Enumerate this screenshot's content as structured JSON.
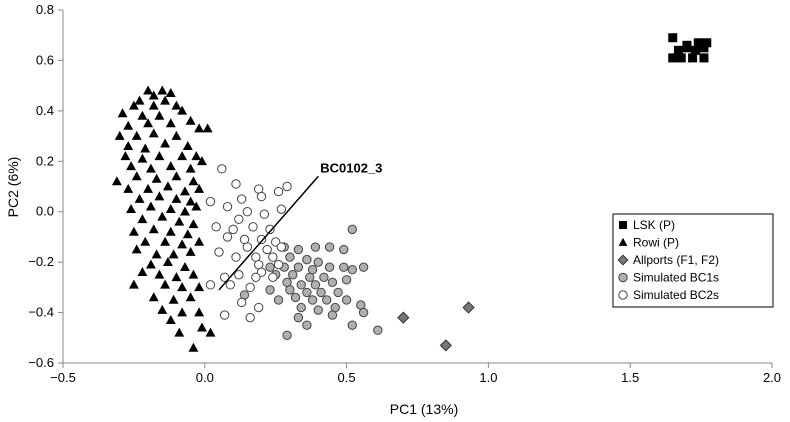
{
  "chart_data": {
    "type": "scatter",
    "xlabel": "PC1 (13%)",
    "ylabel": "PC2 (6%)",
    "xlim": [
      -0.5,
      2.0
    ],
    "ylim": [
      -0.6,
      0.8
    ],
    "x_ticks": [
      "−0.5",
      "0.0",
      "0.5",
      "1.0",
      "1.5",
      "2.0"
    ],
    "x_tick_values": [
      -0.5,
      0.0,
      0.5,
      1.0,
      1.5,
      2.0
    ],
    "y_ticks": [
      "0.8",
      "0.6",
      "0.4",
      "0.2",
      "0.0",
      "−0.2",
      "−0.4",
      "−0.6"
    ],
    "y_tick_values": [
      0.8,
      0.6,
      0.4,
      0.2,
      0.0,
      -0.2,
      -0.4,
      -0.6
    ],
    "grid": false,
    "legend_position": "right",
    "annotation": {
      "text": "BC0102_3",
      "line_from": [
        0.05,
        -0.31
      ],
      "line_to": [
        0.4,
        0.14
      ]
    },
    "series": [
      {
        "name": "LSK (P)",
        "marker": "square",
        "color": "#000000",
        "points": [
          [
            1.65,
            0.69
          ],
          [
            1.7,
            0.66
          ],
          [
            1.74,
            0.67
          ],
          [
            1.77,
            0.67
          ],
          [
            1.67,
            0.64
          ],
          [
            1.7,
            0.65
          ],
          [
            1.73,
            0.64
          ],
          [
            1.76,
            0.65
          ],
          [
            1.65,
            0.61
          ],
          [
            1.68,
            0.61
          ],
          [
            1.72,
            0.61
          ],
          [
            1.76,
            0.61
          ]
        ]
      },
      {
        "name": "Rowi (P)",
        "marker": "triangle",
        "color": "#000000",
        "points": [
          [
            -0.2,
            0.48
          ],
          [
            -0.15,
            0.48
          ],
          [
            -0.12,
            0.47
          ],
          [
            -0.18,
            0.46
          ],
          [
            -0.23,
            0.44
          ],
          [
            -0.14,
            0.44
          ],
          [
            -0.25,
            0.42
          ],
          [
            -0.18,
            0.42
          ],
          [
            -0.1,
            0.42
          ],
          [
            -0.08,
            0.4
          ],
          [
            -0.29,
            0.39
          ],
          [
            -0.22,
            0.38
          ],
          [
            -0.16,
            0.38
          ],
          [
            -0.02,
            0.33
          ],
          [
            0.01,
            0.33
          ],
          [
            -0.27,
            0.34
          ],
          [
            -0.2,
            0.35
          ],
          [
            -0.12,
            0.35
          ],
          [
            -0.05,
            0.36
          ],
          [
            -0.3,
            0.3
          ],
          [
            -0.24,
            0.3
          ],
          [
            -0.18,
            0.31
          ],
          [
            -0.1,
            0.3
          ],
          [
            -0.27,
            0.26
          ],
          [
            -0.21,
            0.25
          ],
          [
            -0.14,
            0.27
          ],
          [
            -0.06,
            0.26
          ],
          [
            -0.28,
            0.22
          ],
          [
            -0.22,
            0.21
          ],
          [
            -0.16,
            0.22
          ],
          [
            -0.08,
            0.22
          ],
          [
            -0.03,
            0.22
          ],
          [
            -0.26,
            0.18
          ],
          [
            -0.19,
            0.17
          ],
          [
            -0.12,
            0.18
          ],
          [
            -0.05,
            0.17
          ],
          [
            -0.01,
            0.2
          ],
          [
            -0.24,
            0.14
          ],
          [
            -0.17,
            0.13
          ],
          [
            -0.1,
            0.14
          ],
          [
            -0.04,
            0.12
          ],
          [
            -0.31,
            0.12
          ],
          [
            -0.27,
            0.09
          ],
          [
            -0.2,
            0.09
          ],
          [
            -0.13,
            0.1
          ],
          [
            -0.07,
            0.08
          ],
          [
            -0.02,
            0.09
          ],
          [
            -0.23,
            0.05
          ],
          [
            -0.16,
            0.06
          ],
          [
            -0.1,
            0.05
          ],
          [
            -0.05,
            0.04
          ],
          [
            -0.26,
            0.01
          ],
          [
            -0.19,
            0.02
          ],
          [
            -0.12,
            0.01
          ],
          [
            -0.07,
            0.0
          ],
          [
            -0.03,
            0.02
          ],
          [
            -0.22,
            -0.03
          ],
          [
            -0.15,
            -0.02
          ],
          [
            -0.09,
            -0.04
          ],
          [
            -0.04,
            -0.05
          ],
          [
            -0.25,
            -0.08
          ],
          [
            -0.18,
            -0.07
          ],
          [
            -0.12,
            -0.08
          ],
          [
            -0.06,
            -0.09
          ],
          [
            -0.21,
            -0.12
          ],
          [
            -0.14,
            -0.12
          ],
          [
            -0.08,
            -0.13
          ],
          [
            -0.02,
            -0.12
          ],
          [
            -0.24,
            -0.15
          ],
          [
            -0.17,
            -0.17
          ],
          [
            -0.11,
            -0.17
          ],
          [
            -0.05,
            -0.16
          ],
          [
            -0.19,
            -0.21
          ],
          [
            -0.13,
            -0.2
          ],
          [
            -0.07,
            -0.22
          ],
          [
            -0.22,
            -0.24
          ],
          [
            -0.16,
            -0.25
          ],
          [
            -0.1,
            -0.26
          ],
          [
            -0.04,
            -0.25
          ],
          [
            -0.25,
            -0.29
          ],
          [
            -0.14,
            -0.29
          ],
          [
            -0.08,
            -0.3
          ],
          [
            -0.02,
            -0.3
          ],
          [
            -0.18,
            -0.34
          ],
          [
            -0.11,
            -0.35
          ],
          [
            -0.05,
            -0.34
          ],
          [
            -0.15,
            -0.39
          ],
          [
            -0.08,
            -0.4
          ],
          [
            -0.02,
            -0.4
          ],
          [
            -0.12,
            -0.43
          ],
          [
            -0.01,
            -0.46
          ],
          [
            -0.09,
            -0.48
          ],
          [
            0.02,
            -0.48
          ],
          [
            -0.04,
            -0.54
          ]
        ]
      },
      {
        "name": "Allports (F1, F2)",
        "marker": "diamond",
        "color": "#777777",
        "points": [
          [
            0.7,
            -0.42
          ],
          [
            0.93,
            -0.38
          ],
          [
            0.85,
            -0.53
          ]
        ]
      },
      {
        "name": "Simulated BC1s",
        "marker": "circle",
        "color": "#b0b0b0",
        "points": [
          [
            0.52,
            -0.07
          ],
          [
            0.28,
            -0.14
          ],
          [
            0.33,
            -0.15
          ],
          [
            0.39,
            -0.14
          ],
          [
            0.44,
            -0.14
          ],
          [
            0.49,
            -0.15
          ],
          [
            0.3,
            -0.18
          ],
          [
            0.36,
            -0.19
          ],
          [
            0.4,
            -0.2
          ],
          [
            0.23,
            -0.22
          ],
          [
            0.28,
            -0.22
          ],
          [
            0.33,
            -0.22
          ],
          [
            0.38,
            -0.23
          ],
          [
            0.44,
            -0.22
          ],
          [
            0.49,
            -0.22
          ],
          [
            0.56,
            -0.22
          ],
          [
            0.25,
            -0.25
          ],
          [
            0.31,
            -0.25
          ],
          [
            0.37,
            -0.26
          ],
          [
            0.42,
            -0.26
          ],
          [
            0.52,
            -0.23
          ],
          [
            0.29,
            -0.28
          ],
          [
            0.34,
            -0.29
          ],
          [
            0.39,
            -0.29
          ],
          [
            0.45,
            -0.28
          ],
          [
            0.5,
            -0.27
          ],
          [
            0.23,
            -0.31
          ],
          [
            0.3,
            -0.31
          ],
          [
            0.36,
            -0.32
          ],
          [
            0.41,
            -0.32
          ],
          [
            0.47,
            -0.32
          ],
          [
            0.14,
            -0.33
          ],
          [
            0.26,
            -0.35
          ],
          [
            0.32,
            -0.34
          ],
          [
            0.38,
            -0.35
          ],
          [
            0.43,
            -0.35
          ],
          [
            0.5,
            -0.35
          ],
          [
            0.55,
            -0.37
          ],
          [
            0.34,
            -0.38
          ],
          [
            0.4,
            -0.39
          ],
          [
            0.46,
            -0.38
          ],
          [
            0.56,
            -0.4
          ],
          [
            0.33,
            -0.42
          ],
          [
            0.45,
            -0.41
          ],
          [
            0.36,
            -0.45
          ],
          [
            0.52,
            -0.45
          ],
          [
            0.61,
            -0.47
          ],
          [
            0.29,
            -0.49
          ]
        ]
      },
      {
        "name": "Simulated BC2s",
        "marker": "circle",
        "color": "#ffffff",
        "points": [
          [
            0.06,
            0.17
          ],
          [
            0.11,
            0.11
          ],
          [
            0.19,
            0.09
          ],
          [
            0.26,
            0.08
          ],
          [
            0.29,
            0.1
          ],
          [
            0.13,
            0.05
          ],
          [
            0.2,
            0.06
          ],
          [
            0.02,
            0.04
          ],
          [
            0.08,
            0.02
          ],
          [
            0.15,
            0.0
          ],
          [
            0.21,
            -0.01
          ],
          [
            0.27,
            0.01
          ],
          [
            0.12,
            -0.03
          ],
          [
            0.04,
            -0.06
          ],
          [
            0.1,
            -0.07
          ],
          [
            0.17,
            -0.06
          ],
          [
            0.23,
            -0.07
          ],
          [
            0.08,
            -0.1
          ],
          [
            0.14,
            -0.11
          ],
          [
            0.2,
            -0.11
          ],
          [
            0.25,
            -0.12
          ],
          [
            0.15,
            -0.14
          ],
          [
            0.22,
            -0.15
          ],
          [
            0.27,
            -0.14
          ],
          [
            0.18,
            -0.18
          ],
          [
            0.24,
            -0.18
          ],
          [
            0.19,
            -0.21
          ],
          [
            0.26,
            -0.21
          ],
          [
            0.2,
            -0.24
          ],
          [
            0.07,
            -0.26
          ],
          [
            0.12,
            -0.25
          ],
          [
            0.18,
            -0.26
          ],
          [
            0.24,
            -0.26
          ],
          [
            0.02,
            -0.29
          ],
          [
            0.09,
            -0.29
          ],
          [
            0.16,
            -0.3
          ],
          [
            0.13,
            -0.36
          ],
          [
            0.19,
            -0.38
          ],
          [
            0.07,
            -0.41
          ],
          [
            0.16,
            -0.42
          ],
          [
            0.05,
            -0.16
          ],
          [
            0.11,
            -0.18
          ]
        ]
      }
    ]
  }
}
